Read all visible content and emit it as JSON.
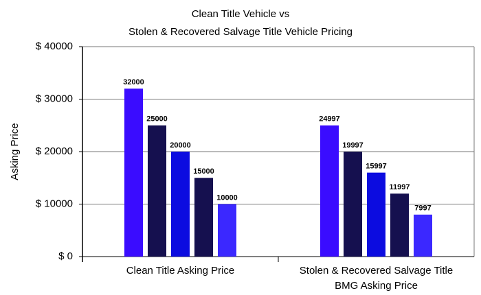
{
  "chart_data": {
    "type": "bar",
    "title": "Clean Title Vehicle vs\nStolen & Recovered Salvage Title Vehicle Pricing",
    "y_label": "Asking Price",
    "categories": [
      "Clean Title Asking Price",
      "Stolen & Recovered Salvage Title\nBMG Asking Price"
    ],
    "series": [
      {
        "color": "#3a0cff",
        "values": [
          32000,
          24997
        ]
      },
      {
        "color": "#15104f",
        "values": [
          25000,
          19997
        ]
      },
      {
        "color": "#0c0ce0",
        "values": [
          20000,
          15997
        ]
      },
      {
        "color": "#15104f",
        "values": [
          15000,
          11997
        ]
      },
      {
        "color": "#3b28ff",
        "values": [
          10000,
          7997
        ]
      }
    ],
    "ylim": [
      0,
      40000
    ],
    "yticks": [
      {
        "value": 0,
        "label": "$ 0"
      },
      {
        "value": 10000,
        "label": "$ 10000"
      },
      {
        "value": 20000,
        "label": "$ 20000"
      },
      {
        "value": 30000,
        "label": "$ 30000"
      },
      {
        "value": 40000,
        "label": "$ 40000"
      }
    ],
    "grid": true
  }
}
